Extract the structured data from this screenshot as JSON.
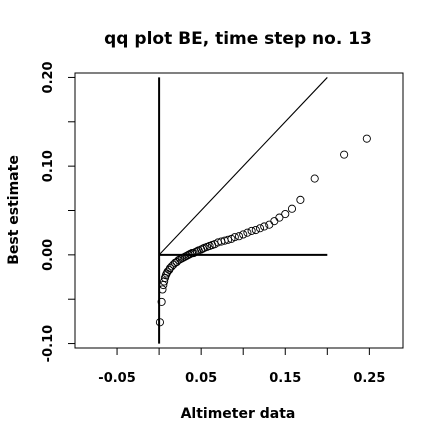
{
  "chart_data": {
    "type": "scatter",
    "title": "qq plot BE, time step no. 13",
    "xlabel": "Altimeter data",
    "ylabel": "Best estimate",
    "xlim": [
      -0.1,
      0.29
    ],
    "ylim": [
      -0.105,
      0.205
    ],
    "x_ticks": [
      -0.05,
      0.05,
      0.15,
      0.25
    ],
    "x_tick_labels": [
      "-0.05",
      "0.05",
      "0.15",
      "0.25"
    ],
    "y_ticks": [
      -0.1,
      0.0,
      0.1,
      0.2
    ],
    "y_tick_labels": [
      "-0.10",
      "0.00",
      "0.10",
      "0.20"
    ],
    "x_minor_ticks": [
      0.0,
      0.1,
      0.2
    ],
    "y_minor_ticks": [
      -0.05,
      0.05,
      0.15
    ],
    "grid": false,
    "legend": "none",
    "marker": "open-circle",
    "reference_lines": {
      "identity": {
        "x": [
          0.0,
          0.2
        ],
        "y": [
          0.0,
          0.2
        ]
      },
      "vertical_axis": {
        "x": [
          0.0,
          0.0
        ],
        "y": [
          -0.1,
          0.2
        ]
      },
      "horizontal_axis": {
        "x": [
          0.0,
          0.2
        ],
        "y": [
          0.0,
          0.0
        ]
      }
    },
    "points": {
      "x": [
        0.001,
        0.003,
        0.004,
        0.005,
        0.006,
        0.007,
        0.008,
        0.009,
        0.01,
        0.012,
        0.013,
        0.015,
        0.017,
        0.019,
        0.021,
        0.023,
        0.025,
        0.027,
        0.029,
        0.031,
        0.033,
        0.035,
        0.037,
        0.039,
        0.041,
        0.043,
        0.045,
        0.047,
        0.05,
        0.052,
        0.054,
        0.057,
        0.06,
        0.063,
        0.066,
        0.07,
        0.074,
        0.078,
        0.082,
        0.086,
        0.09,
        0.095,
        0.1,
        0.105,
        0.11,
        0.115,
        0.12,
        0.125,
        0.131,
        0.137,
        0.143,
        0.15,
        0.158,
        0.168,
        0.185,
        0.22,
        0.247
      ],
      "y": [
        -0.076,
        -0.053,
        -0.039,
        -0.034,
        -0.03,
        -0.026,
        -0.023,
        -0.021,
        -0.019,
        -0.017,
        -0.015,
        -0.013,
        -0.011,
        -0.009,
        -0.008,
        -0.006,
        -0.005,
        -0.004,
        -0.003,
        -0.002,
        -0.001,
        0.0,
        0.001,
        0.002,
        0.002,
        0.003,
        0.004,
        0.005,
        0.006,
        0.007,
        0.008,
        0.009,
        0.01,
        0.011,
        0.012,
        0.014,
        0.015,
        0.016,
        0.017,
        0.018,
        0.02,
        0.021,
        0.023,
        0.025,
        0.027,
        0.028,
        0.03,
        0.032,
        0.034,
        0.038,
        0.042,
        0.046,
        0.052,
        0.062,
        0.086,
        0.113,
        0.131
      ]
    }
  }
}
